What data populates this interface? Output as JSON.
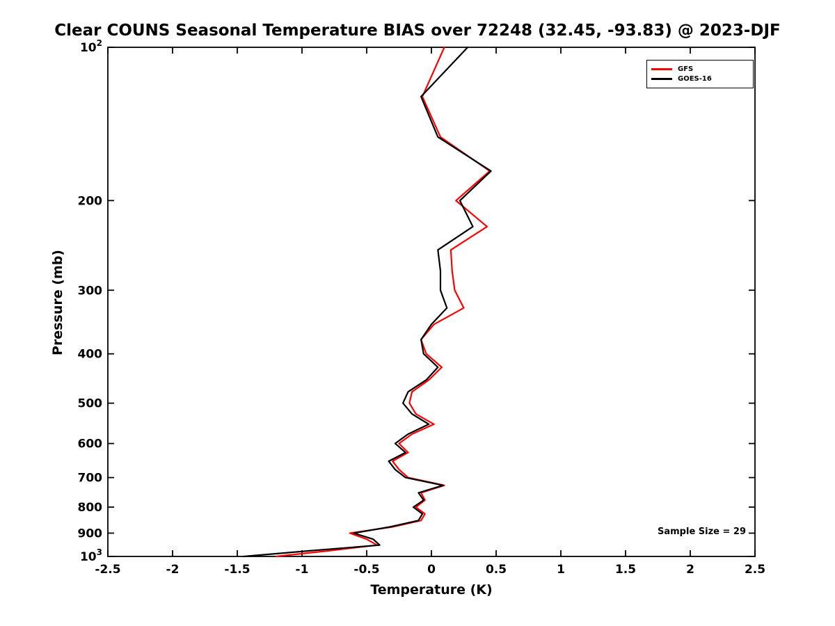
{
  "page": {
    "title": "Clear COUNS Seasonal Temperature BIAS over 72248 (32.45, -93.83) @ 2023-DJF",
    "annotation": "Sample Size = 29"
  },
  "chart_data": {
    "type": "line",
    "title": "Clear COUNS Seasonal Temperature BIAS over 72248 (32.45, -93.83) @ 2023-DJF",
    "xlabel": "Temperature (K)",
    "ylabel": "Pressure (mb)",
    "xlim": [
      -2.5,
      2.5
    ],
    "ylim": [
      100,
      1000
    ],
    "y_scale": "log",
    "y_inverted": true,
    "grid": false,
    "x_ticks": [
      -2.5,
      -2,
      -1.5,
      -1,
      -0.5,
      0,
      0.5,
      1,
      1.5,
      2,
      2.5
    ],
    "x_tick_labels": [
      "-2.5",
      "-2",
      "-1.5",
      "-1",
      "-0.5",
      "0",
      "0.5",
      "1",
      "1.5",
      "2",
      "2.5"
    ],
    "y_ticks": [
      100,
      200,
      300,
      400,
      500,
      600,
      700,
      800,
      900,
      1000
    ],
    "y_tick_labels": [
      "10^2",
      "200",
      "300",
      "400",
      "500",
      "600",
      "700",
      "800",
      "900",
      "10^3"
    ],
    "legend": {
      "position": "top-right",
      "entries": [
        {
          "name": "GFS",
          "color": "#ff0000"
        },
        {
          "name": "GOES-16",
          "color": "#000000"
        }
      ]
    },
    "annotation": "Sample Size = 29",
    "pressure_levels_mb": [
      100,
      125,
      150,
      175,
      200,
      225,
      250,
      275,
      300,
      325,
      350,
      375,
      400,
      425,
      450,
      475,
      500,
      525,
      550,
      575,
      600,
      625,
      650,
      675,
      700,
      725,
      750,
      775,
      800,
      825,
      850,
      875,
      900,
      925,
      950,
      975,
      1000
    ],
    "series": [
      {
        "name": "GFS",
        "color": "#ff0000",
        "values": [
          0.1,
          -0.07,
          0.07,
          0.45,
          0.19,
          0.43,
          0.15,
          0.16,
          0.18,
          0.25,
          0.02,
          -0.08,
          -0.04,
          0.08,
          -0.02,
          -0.15,
          -0.17,
          -0.12,
          0.02,
          -0.15,
          -0.25,
          -0.18,
          -0.3,
          -0.25,
          -0.18,
          0.1,
          -0.08,
          -0.05,
          -0.12,
          -0.05,
          -0.08,
          -0.3,
          -0.63,
          -0.5,
          -0.42,
          -0.8,
          -1.2
        ]
      },
      {
        "name": "GOES-16",
        "color": "#000000",
        "values": [
          0.28,
          -0.08,
          0.05,
          0.46,
          0.22,
          0.32,
          0.05,
          0.07,
          0.07,
          0.12,
          0.0,
          -0.08,
          -0.06,
          0.05,
          -0.04,
          -0.18,
          -0.22,
          -0.15,
          -0.02,
          -0.18,
          -0.28,
          -0.2,
          -0.33,
          -0.28,
          -0.2,
          0.09,
          -0.1,
          -0.06,
          -0.14,
          -0.07,
          -0.1,
          -0.32,
          -0.6,
          -0.45,
          -0.4,
          -0.95,
          -1.45
        ]
      }
    ]
  }
}
